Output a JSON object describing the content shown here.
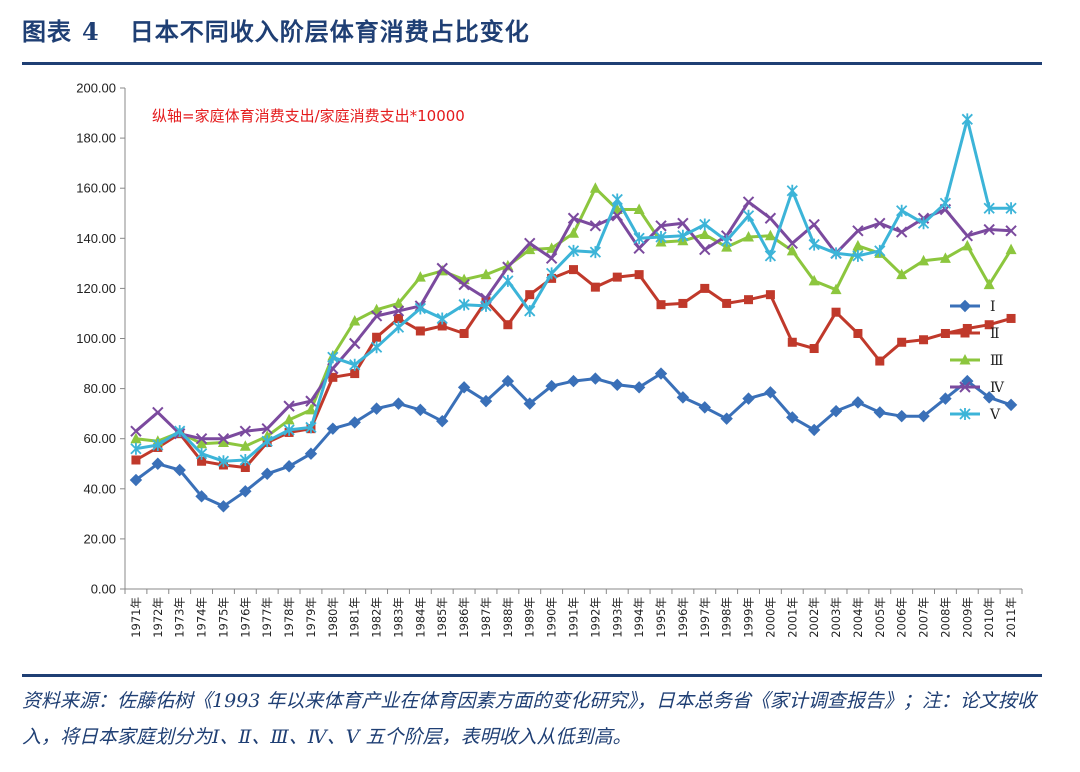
{
  "title": {
    "prefix": "图表",
    "number": "4",
    "text": "日本不同收入阶层体育消费占比变化"
  },
  "source_note": "资料来源：佐藤佑树《1993 年以来体育产业在体育因素方面的变化研究》，日本总务省《家计调查报告》；注：论文按收入，将日本家庭划分为Ⅰ、Ⅱ、Ⅲ、Ⅳ、Ⅴ 五个阶层，表明收入从低到高。",
  "chart_data": {
    "type": "line",
    "annotation": "纵轴=家庭体育消费支出/家庭消费支出*10000",
    "x": [
      "1971年",
      "1972年",
      "1973年",
      "1974年",
      "1975年",
      "1976年",
      "1977年",
      "1978年",
      "1979年",
      "1980年",
      "1981年",
      "1982年",
      "1983年",
      "1984年",
      "1985年",
      "1986年",
      "1987年",
      "1988年",
      "1989年",
      "1990年",
      "1991年",
      "1992年",
      "1993年",
      "1994年",
      "1995年",
      "1996年",
      "1997年",
      "1998年",
      "1999年",
      "2000年",
      "2001年",
      "2002年",
      "2003年",
      "2004年",
      "2005年",
      "2006年",
      "2007年",
      "2008年",
      "2009年",
      "2010年",
      "2011年"
    ],
    "ylim": [
      0,
      200
    ],
    "yticks": [
      "0.00",
      "20.00",
      "40.00",
      "60.00",
      "80.00",
      "100.00",
      "120.00",
      "140.00",
      "160.00",
      "180.00",
      "200.00"
    ],
    "grid": false,
    "legend_position": "right",
    "series": [
      {
        "name": "Ⅰ",
        "color": "#3a70b8",
        "marker": "diamond",
        "values": [
          43.5,
          50,
          47.5,
          37,
          33,
          39,
          46,
          49,
          54,
          64,
          66.5,
          72,
          74,
          71.5,
          67,
          80.5,
          75,
          83,
          74,
          81,
          83,
          84,
          81.5,
          80.5,
          86,
          76.5,
          72.5,
          68,
          76,
          78.5,
          68.5,
          63.5,
          71,
          74.5,
          70.5,
          69,
          69,
          76,
          83,
          76.5,
          73.5
        ]
      },
      {
        "name": "Ⅱ",
        "color": "#c0392b",
        "marker": "square",
        "values": [
          51.5,
          56.5,
          62,
          51,
          49.5,
          48.5,
          58.5,
          62.5,
          64,
          84.5,
          86,
          100.5,
          108,
          103,
          105,
          102,
          115,
          105.5,
          117.5,
          124,
          127.5,
          120.5,
          124.5,
          125.5,
          113.5,
          114,
          120,
          114,
          115.5,
          117.5,
          98.5,
          96,
          110.5,
          102,
          91,
          98.5,
          99.5,
          102,
          104,
          105.5,
          108
        ]
      },
      {
        "name": "Ⅲ",
        "color": "#8cc63e",
        "marker": "triangle",
        "values": [
          60,
          59,
          62.5,
          58,
          58.5,
          57,
          61,
          67.5,
          71.5,
          93,
          107,
          111.5,
          114,
          124.5,
          127,
          123.5,
          125.5,
          129,
          135.5,
          136,
          142,
          160,
          151.5,
          151.5,
          138.5,
          139,
          141.5,
          136.5,
          140.5,
          141,
          135,
          123,
          119.5,
          137,
          134,
          125.5,
          131,
          132,
          137,
          121.5,
          135.5
        ]
      },
      {
        "name": "Ⅳ",
        "color": "#7b4a9e",
        "marker": "x",
        "values": [
          63,
          70.5,
          62,
          60,
          60,
          63,
          64,
          73,
          75,
          88,
          98,
          109,
          111,
          113,
          128,
          121.5,
          116,
          128.5,
          138,
          132,
          148,
          145,
          149,
          136,
          145,
          146,
          135.5,
          141,
          154.5,
          148,
          138,
          145.5,
          134,
          143,
          146,
          142.5,
          148,
          151.5,
          141,
          143.5,
          143
        ]
      },
      {
        "name": "Ⅴ",
        "color": "#3cb4d8",
        "marker": "star",
        "values": [
          56,
          57.5,
          63,
          54,
          51,
          51.5,
          59,
          63.5,
          64.5,
          92.5,
          89.5,
          96.5,
          104.5,
          112,
          108,
          113.5,
          113,
          123,
          111,
          126,
          135,
          134.5,
          155.5,
          140,
          140.5,
          141,
          145.5,
          139,
          149,
          133,
          159,
          137.5,
          134,
          133,
          135,
          151,
          146,
          154,
          187.5,
          152,
          152
        ]
      }
    ]
  }
}
